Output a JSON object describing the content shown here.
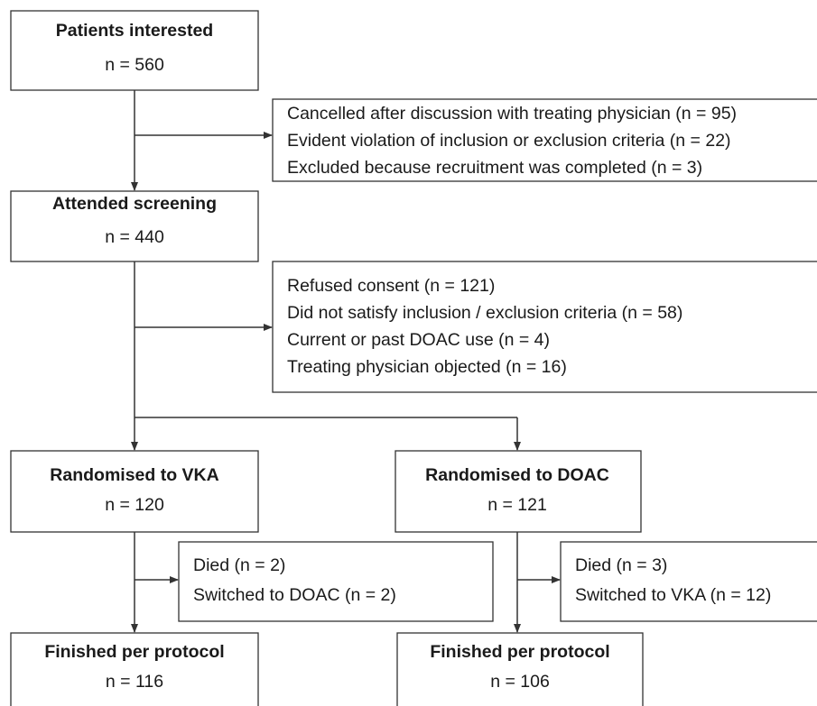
{
  "nodes": [
    {
      "title": "Patients interested",
      "count": "n = 560"
    },
    {
      "title": "Attended screening",
      "count": "n = 440"
    },
    {
      "title": "Randomised to VKA",
      "count": "n = 120"
    },
    {
      "title": "Randomised to DOAC",
      "count": "n = 121"
    },
    {
      "title": "Finished per protocol",
      "count": "n = 116"
    },
    {
      "title": "Finished per protocol",
      "count": "n = 106"
    }
  ],
  "exclusions": [
    {
      "lines": [
        "Cancelled after discussion with treating physician (n = 95)",
        "Evident violation of inclusion or exclusion criteria (n = 22)",
        "Excluded because recruitment was completed (n = 3)"
      ]
    },
    {
      "lines": [
        "Refused consent (n = 121)",
        "Did not satisfy inclusion / exclusion criteria (n = 58)",
        "Current or past DOAC use (n = 4)",
        "Treating physician objected (n = 16)"
      ]
    },
    {
      "lines": [
        "Died (n = 2)",
        "Switched to DOAC (n = 2)"
      ]
    },
    {
      "lines": [
        "Died (n = 3)",
        "Switched to VKA (n = 12)"
      ]
    }
  ]
}
